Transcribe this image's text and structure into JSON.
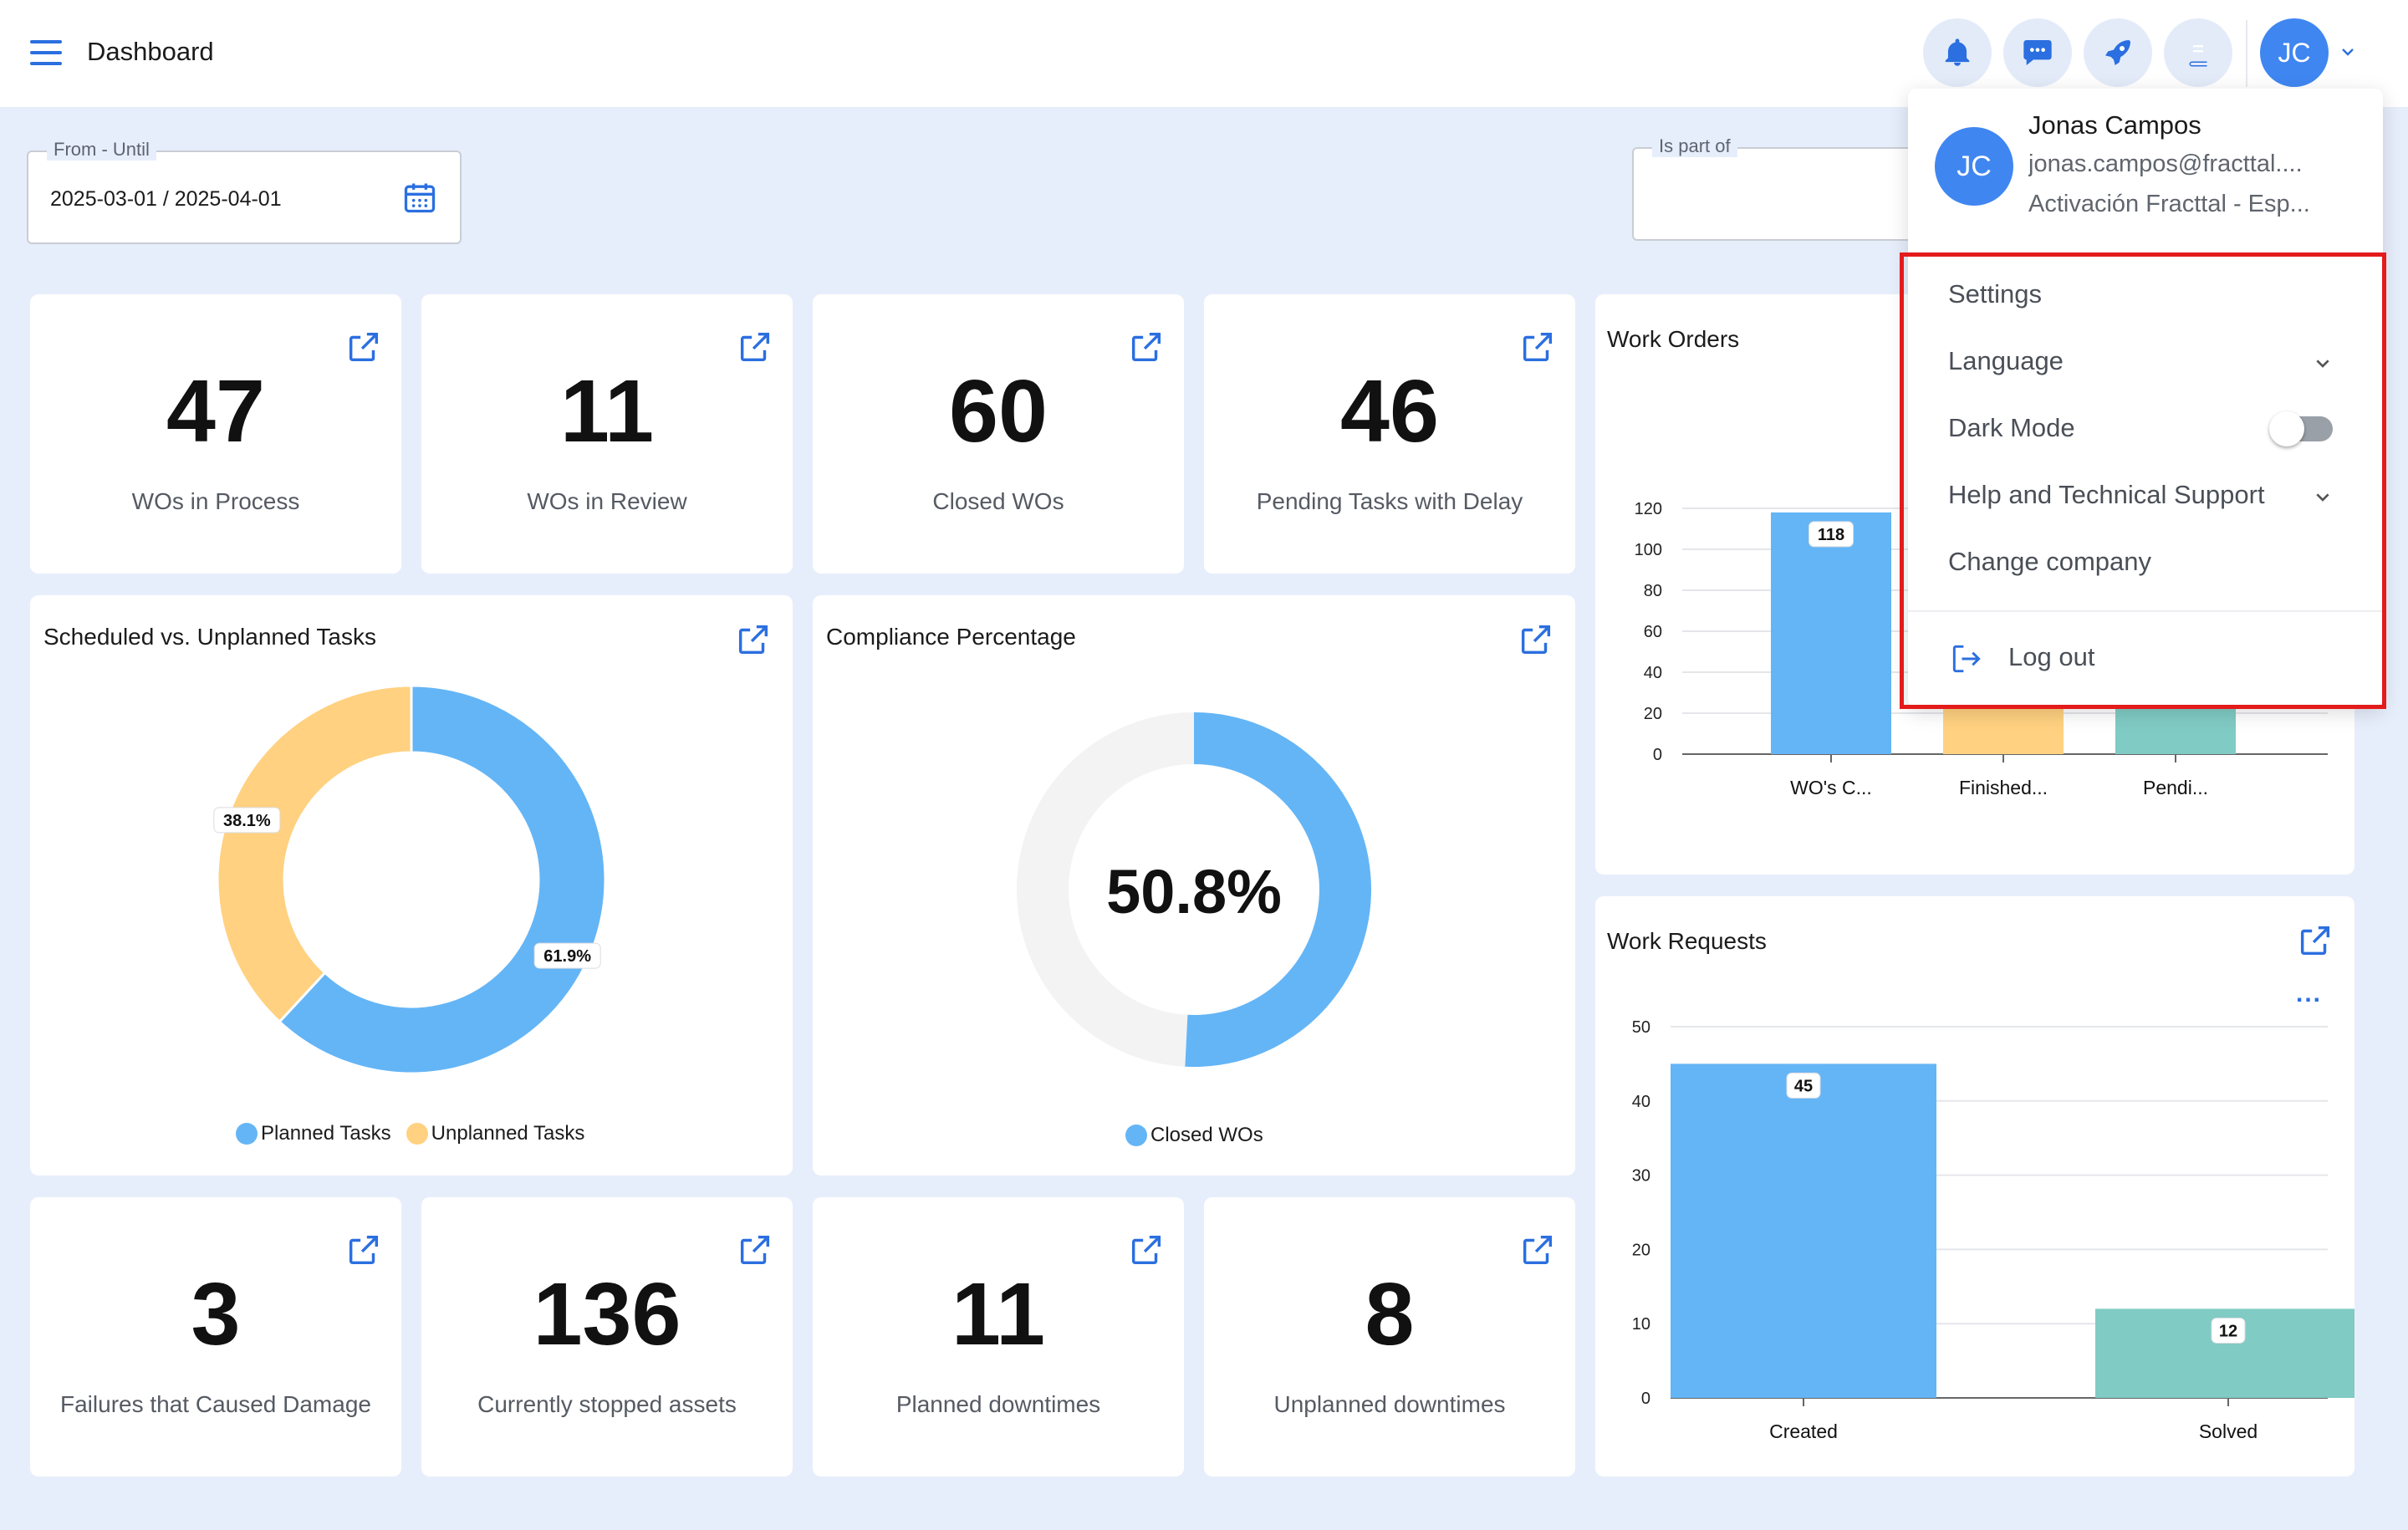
{
  "header": {
    "title": "Dashboard",
    "avatar_initials": "JC"
  },
  "filters": {
    "date_label": "From - Until",
    "date_value": "2025-03-01 / 2025-04-01",
    "is_part_of_label": "Is part of"
  },
  "kpis_top": [
    {
      "value": "47",
      "label": "WOs in Process"
    },
    {
      "value": "11",
      "label": "WOs in Review"
    },
    {
      "value": "60",
      "label": "Closed WOs"
    },
    {
      "value": "46",
      "label": "Pending Tasks with Delay"
    }
  ],
  "kpis_bottom": [
    {
      "value": "3",
      "label": "Failures that Caused Damage"
    },
    {
      "value": "136",
      "label": "Currently stopped assets"
    },
    {
      "value": "11",
      "label": "Planned downtimes"
    },
    {
      "value": "8",
      "label": "Unplanned downtimes"
    }
  ],
  "user_menu": {
    "initials": "JC",
    "name": "Jonas Campos",
    "email": "jonas.campos@fracttal....",
    "company": "Activación Fracttal - Esp...",
    "items": {
      "settings": "Settings",
      "language": "Language",
      "dark_mode": "Dark Mode",
      "help": "Help and Technical Support",
      "change_company": "Change company",
      "logout": "Log out"
    },
    "dark_mode_on": false
  },
  "colors": {
    "blue": "#64b5f6",
    "yellow": "#ffd180",
    "teal": "#80cbc4",
    "accent": "#2b6fe0",
    "highlight": "#e41b1b"
  },
  "icons": [
    "menu-icon",
    "bell-icon",
    "chat-icon",
    "rocket-icon",
    "book-icon",
    "calendar-icon",
    "external-link-icon",
    "logout-icon",
    "chevron-down-icon"
  ],
  "chart_data": [
    {
      "type": "pie",
      "title": "Scheduled vs. Unplanned Tasks",
      "categories": [
        "Planned Tasks",
        "Unplanned Tasks"
      ],
      "values": [
        61.9,
        38.1
      ],
      "labels": [
        "61.9%",
        "38.1%"
      ],
      "legend": "bottom"
    },
    {
      "type": "pie",
      "title": "Compliance Percentage",
      "categories": [
        "Closed WOs"
      ],
      "values": [
        50.8
      ],
      "center_label": "50.8%",
      "legend": "bottom"
    },
    {
      "type": "bar",
      "title": "Work Orders",
      "categories": [
        "WO's C...",
        "Finished...",
        "Pendi..."
      ],
      "values": [
        118,
        60,
        46
      ],
      "labels": [
        "118",
        "",
        ""
      ],
      "ylim": [
        0,
        120
      ],
      "yticks": [
        "0",
        "20",
        "40",
        "60",
        "80",
        "100",
        "120"
      ],
      "grid": true
    },
    {
      "type": "bar",
      "title": "Work Requests",
      "categories": [
        "Created",
        "Solved"
      ],
      "values": [
        45,
        12
      ],
      "labels": [
        "45",
        "12"
      ],
      "ylim": [
        0,
        50
      ],
      "yticks": [
        "0",
        "10",
        "20",
        "30",
        "40",
        "50"
      ],
      "grid": true,
      "more_label": "..."
    }
  ]
}
